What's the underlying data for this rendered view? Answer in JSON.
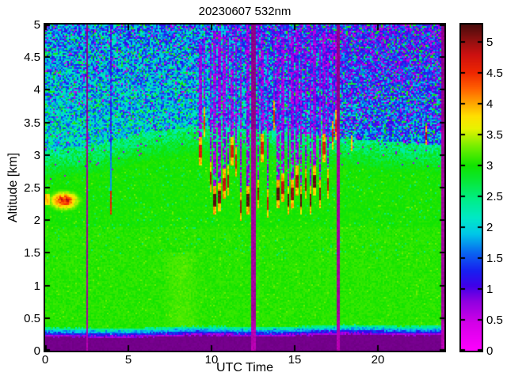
{
  "title": "20230607 532nm",
  "axes": {
    "xlabel": "UTC Time",
    "ylabel": "Altitude [km]",
    "x_tick_labels": [
      "0",
      "5",
      "10",
      "15",
      "20"
    ],
    "x_tick_values": [
      0,
      5,
      10,
      15,
      20
    ],
    "y_tick_labels": [
      "0",
      "0.5",
      "1",
      "1.5",
      "2",
      "2.5",
      "3",
      "3.5",
      "4",
      "4.5",
      "5"
    ],
    "y_tick_values": [
      0,
      0.5,
      1,
      1.5,
      2,
      2.5,
      3,
      3.5,
      4,
      4.5,
      5
    ],
    "x_range": [
      0,
      24
    ],
    "y_range": [
      0,
      5
    ]
  },
  "colorbar": {
    "tick_labels": [
      "0",
      "0.5",
      "1",
      "1.5",
      "2",
      "2.5",
      "3",
      "3.5",
      "4",
      "4.5",
      "5"
    ],
    "tick_values": [
      0,
      0.5,
      1,
      1.5,
      2,
      2.5,
      3,
      3.5,
      4,
      4.5,
      5
    ],
    "range": [
      0,
      5.28
    ],
    "stops": [
      [
        0.0,
        "#ff00ff"
      ],
      [
        0.45,
        "#d400e8"
      ],
      [
        0.8,
        "#9000e0"
      ],
      [
        1.05,
        "#4000e8"
      ],
      [
        1.3,
        "#1820f0"
      ],
      [
        1.6,
        "#0968f0"
      ],
      [
        1.9,
        "#00c8e8"
      ],
      [
        2.15,
        "#00e8c8"
      ],
      [
        2.45,
        "#00ee88"
      ],
      [
        2.75,
        "#08e838"
      ],
      [
        3.0,
        "#10e400"
      ],
      [
        3.3,
        "#70ee00"
      ],
      [
        3.6,
        "#e8f200"
      ],
      [
        3.8,
        "#ffe000"
      ],
      [
        4.0,
        "#ffa800"
      ],
      [
        4.25,
        "#ff6000"
      ],
      [
        4.5,
        "#f02800"
      ],
      [
        4.8,
        "#cc1010"
      ],
      [
        5.0,
        "#981010"
      ],
      [
        5.28,
        "#4a0c0c"
      ]
    ]
  },
  "chart_data": {
    "type": "heatmap",
    "title": "20230607 532nm",
    "x_axis": {
      "label": "UTC Time",
      "range": [
        0,
        24
      ],
      "units": "hours"
    },
    "y_axis": {
      "label": "Altitude [km]",
      "range": [
        0,
        5
      ]
    },
    "value_range": [
      0,
      5.28
    ],
    "ground_band": {
      "color": "#7a0092",
      "top_km_start": 0.2,
      "top_km_end": 0.25
    },
    "surface_transition": {
      "violet_km": 0.03,
      "blue_km": 0.065,
      "bluecyan_km": 0.105,
      "cyan_km": 0.145
    },
    "green_top_km": [
      [
        0,
        3.05
      ],
      [
        3,
        3.15
      ],
      [
        6,
        3.35
      ],
      [
        9,
        3.45
      ],
      [
        12,
        3.4
      ],
      [
        15,
        3.35
      ],
      [
        18,
        3.25
      ],
      [
        21,
        3.2
      ],
      [
        24,
        3.15
      ]
    ],
    "green_value": 3.02,
    "upper_base_value": [
      [
        0,
        2.05
      ],
      [
        9,
        1.95
      ],
      [
        18,
        1.6
      ],
      [
        24,
        1.55
      ]
    ],
    "noise": {
      "upper_amplitude": 1.25,
      "magenta_speckle_value": 0.45,
      "green_speckle_value": 2.7
    },
    "dropout_stripes_utc": [
      {
        "t": 2.52,
        "w": 0.12
      },
      {
        "t": 12.5,
        "w": 0.26
      },
      {
        "t": 17.62,
        "w": 0.14
      },
      {
        "t": 23.93,
        "w": 0.15
      }
    ],
    "stripe_color": "#b000b0",
    "aerosol_layer": {
      "t_center": 1.15,
      "t_sigma": 0.5,
      "h_center_km": 2.3,
      "h_sigma_km": 0.08,
      "peak_value": 4.7,
      "edge_t_max": 0.3,
      "edge_h0": 2.24,
      "edge_h1": 2.4,
      "edge_v": 3.7
    },
    "clouds_t_base_top_intensity_width": [
      [
        9.35,
        2.95,
        4.7,
        0.5,
        0.1
      ],
      [
        9.6,
        3.4,
        4.8,
        0.35,
        0.08
      ],
      [
        9.95,
        2.55,
        4.7,
        0.7,
        0.1
      ],
      [
        10.2,
        2.2,
        4.9,
        1.0,
        0.12
      ],
      [
        10.5,
        2.25,
        4.9,
        0.9,
        0.11
      ],
      [
        10.75,
        2.45,
        4.8,
        0.6,
        0.08
      ],
      [
        11.0,
        2.5,
        4.8,
        0.7,
        0.1
      ],
      [
        11.25,
        2.95,
        4.7,
        0.5,
        0.08
      ],
      [
        11.5,
        2.8,
        4.9,
        0.5,
        0.08
      ],
      [
        11.75,
        2.1,
        4.8,
        0.8,
        0.1
      ],
      [
        12.2,
        2.2,
        5.0,
        1.0,
        0.12
      ],
      [
        12.8,
        2.3,
        5.0,
        0.8,
        0.1
      ],
      [
        13.05,
        3.0,
        4.8,
        0.5,
        0.08
      ],
      [
        13.4,
        2.15,
        4.6,
        0.6,
        0.06
      ],
      [
        13.75,
        3.5,
        4.9,
        0.4,
        0.08
      ],
      [
        14.0,
        2.3,
        4.9,
        1.0,
        0.12
      ],
      [
        14.3,
        2.4,
        4.8,
        0.7,
        0.1
      ],
      [
        14.6,
        2.2,
        5.0,
        1.0,
        0.1
      ],
      [
        14.85,
        2.3,
        4.8,
        0.8,
        0.08
      ],
      [
        15.15,
        2.5,
        4.9,
        0.7,
        0.1
      ],
      [
        15.4,
        2.2,
        5.0,
        1.0,
        0.1
      ],
      [
        15.65,
        2.45,
        4.8,
        0.8,
        0.08
      ],
      [
        15.95,
        2.2,
        4.9,
        0.9,
        0.1
      ],
      [
        16.2,
        2.5,
        5.0,
        1.0,
        0.1
      ],
      [
        16.5,
        2.3,
        4.8,
        0.8,
        0.08
      ],
      [
        16.75,
        3.0,
        4.9,
        0.5,
        0.08
      ],
      [
        17.0,
        2.45,
        4.8,
        0.7,
        0.08
      ],
      [
        17.3,
        3.2,
        5.0,
        0.5,
        0.08
      ],
      [
        17.45,
        3.35,
        4.9,
        0.4,
        0.06
      ]
    ],
    "small_features": [
      {
        "t": 3.93,
        "w": 0.07,
        "h0": 2.08,
        "h1": 2.45,
        "v": 4.6,
        "column_top": 5.0
      },
      {
        "t": 18.45,
        "w": 0.07,
        "h0": 3.05,
        "h1": 3.3,
        "v": 3.9
      },
      {
        "t": 22.9,
        "w": 0.07,
        "h0": 3.15,
        "h1": 3.45,
        "v": 4.0,
        "core_v": 4.9
      }
    ]
  },
  "colors": {
    "background": "#ffffff",
    "axis": "#000000",
    "text": "#000000"
  }
}
